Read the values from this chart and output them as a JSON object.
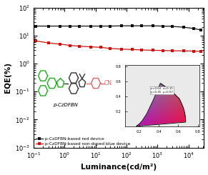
{
  "xlabel": "Luminance(cd/m²)",
  "ylabel": "EQE(%)",
  "red_device": {
    "label": "p-CzDFBN-based red device",
    "color": "#111111",
    "x": [
      0.12,
      0.3,
      0.7,
      1.5,
      3.0,
      7.0,
      15,
      30,
      70,
      150,
      300,
      700,
      1500,
      3000,
      7000,
      15000,
      25000
    ],
    "y": [
      22.0,
      22.0,
      22.0,
      22.0,
      22.0,
      22.0,
      22.0,
      22.0,
      22.5,
      22.5,
      22.5,
      22.5,
      22.0,
      21.5,
      20.0,
      18.0,
      16.0
    ]
  },
  "blue_device": {
    "label": "p-CzDFBN-based non-doped blue device",
    "color": "#cc1111",
    "x": [
      0.12,
      0.3,
      0.7,
      1.5,
      3.0,
      7.0,
      15,
      30,
      70,
      150,
      300,
      700,
      1500,
      3000,
      7000,
      15000,
      25000
    ],
    "y": [
      6.5,
      5.5,
      5.0,
      4.5,
      4.2,
      4.0,
      3.8,
      3.5,
      3.3,
      3.2,
      3.1,
      3.0,
      2.95,
      2.9,
      2.85,
      2.8,
      2.75
    ]
  },
  "green_color": "#22aa22",
  "dark_color": "#333333",
  "pink_color": "#dd6666",
  "cie_label_text": "x=0.64  x=0.15\ny=0.35  y=0.07"
}
